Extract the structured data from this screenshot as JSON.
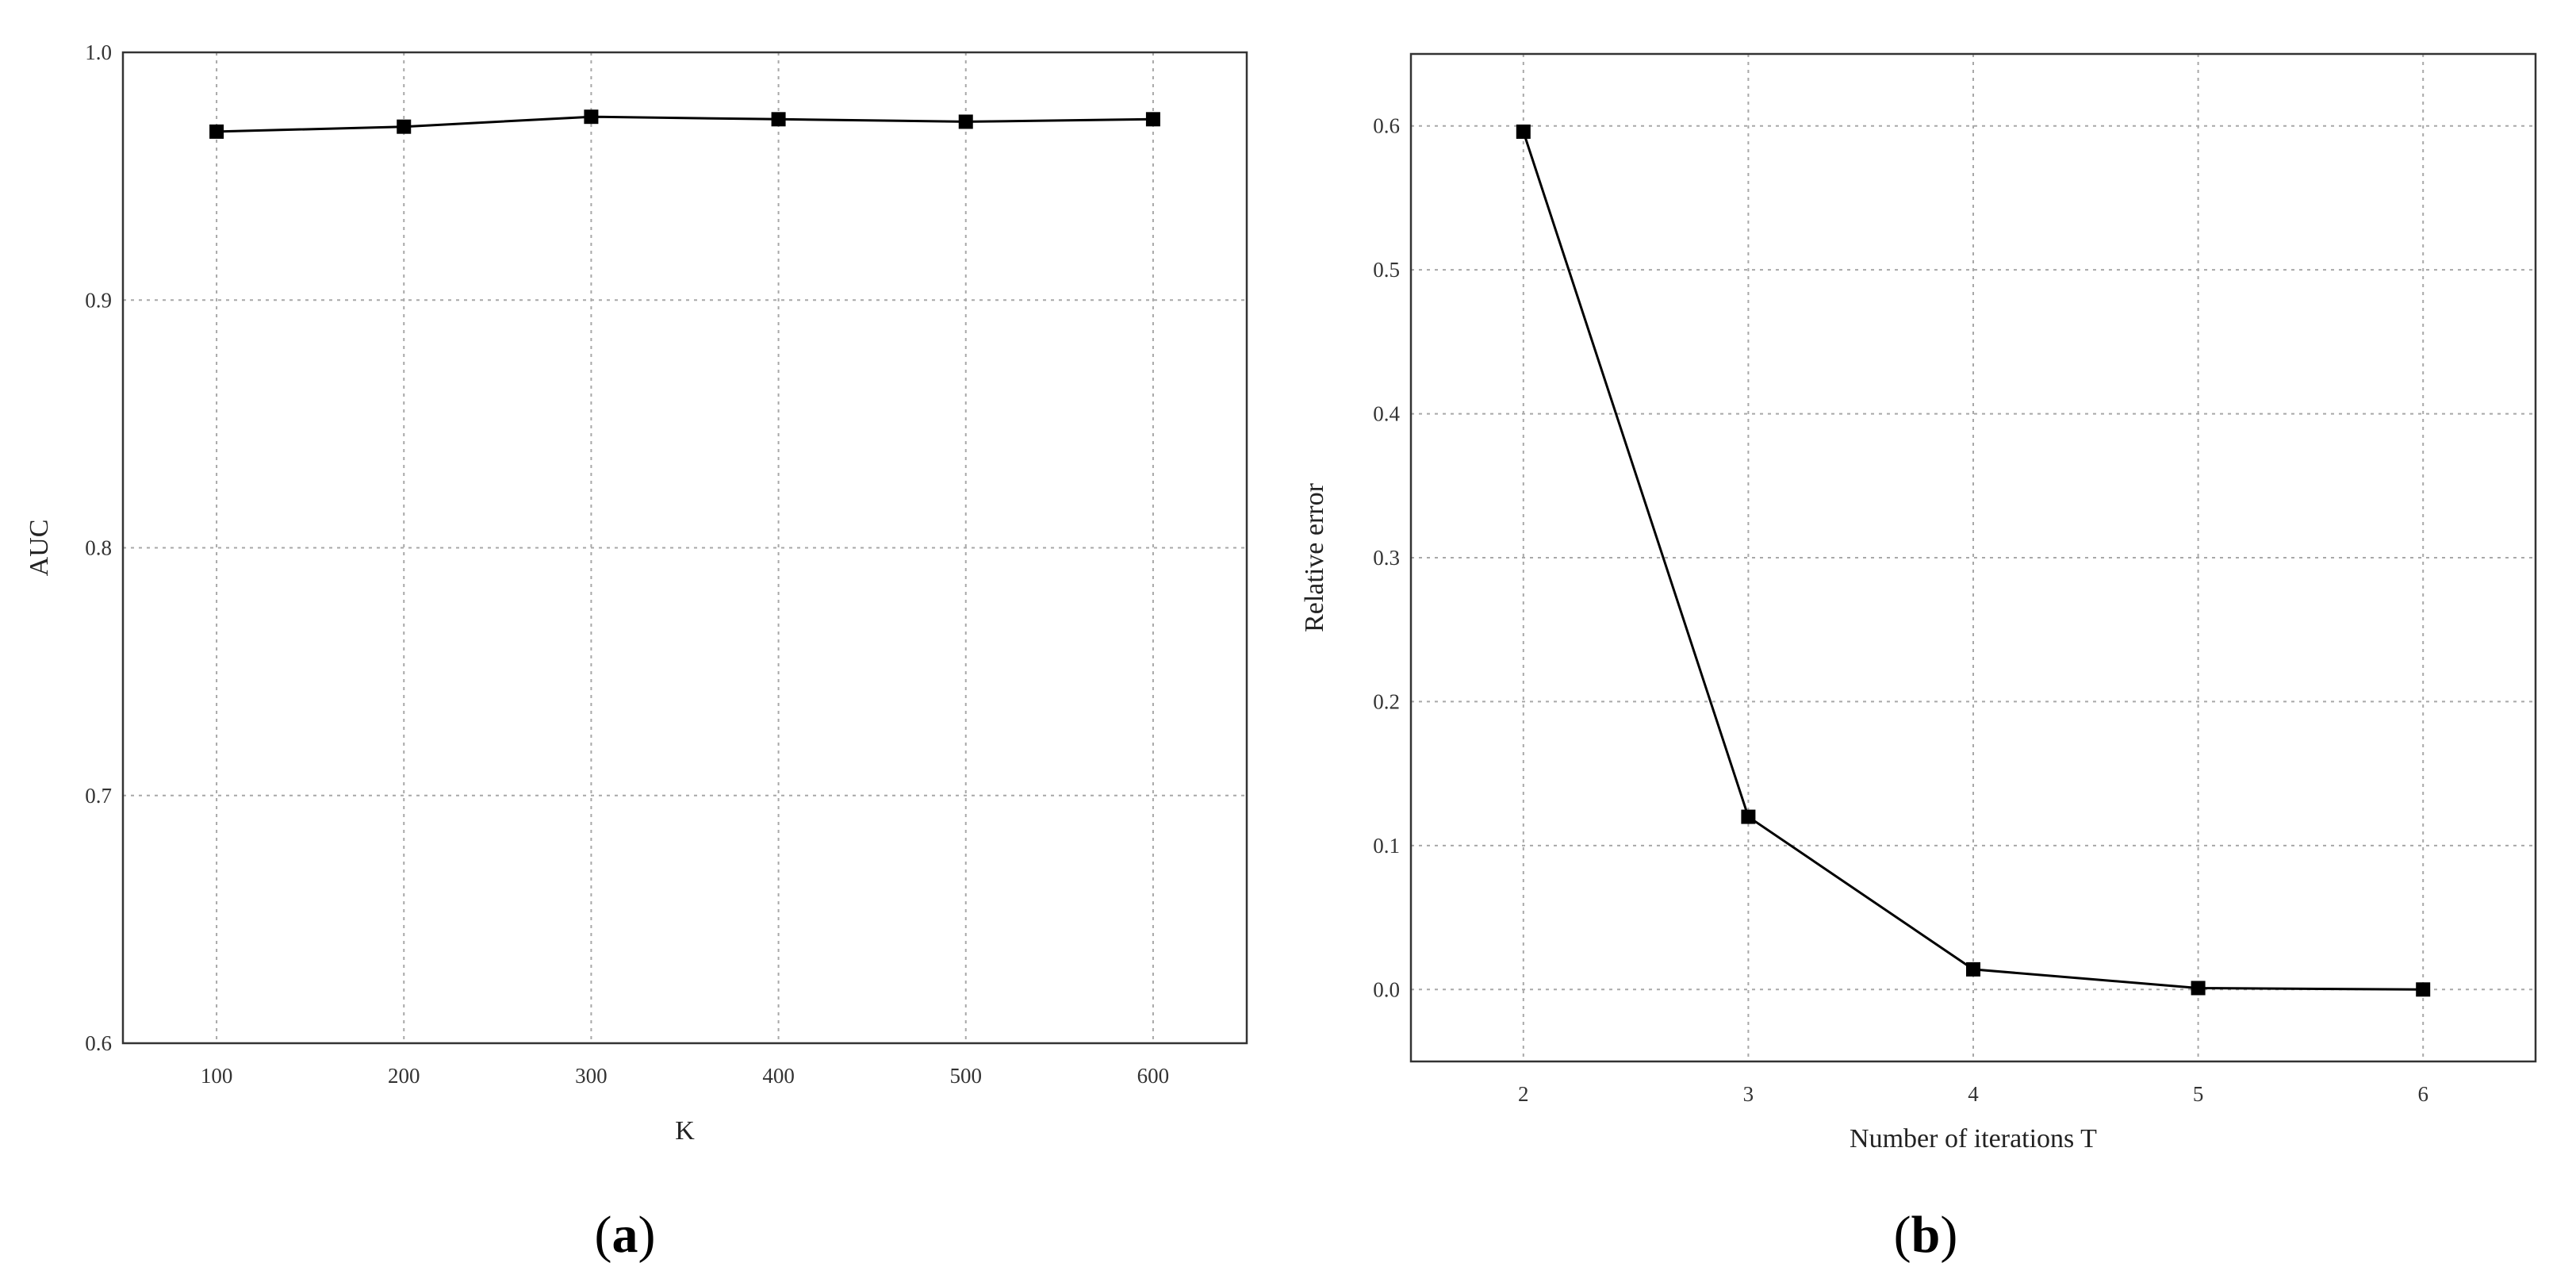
{
  "chart_data": [
    {
      "type": "line",
      "panel_label": "a",
      "xlabel": "K",
      "ylabel": "AUC",
      "xlim": [
        50,
        650
      ],
      "ylim": [
        0.6,
        1.0
      ],
      "xticks": [
        "100",
        "200",
        "300",
        "400",
        "500",
        "600"
      ],
      "yticks": [
        "0.6",
        "0.7",
        "0.8",
        "0.9",
        "1.0"
      ],
      "grid": true,
      "series": [
        {
          "x": [
            100,
            200,
            300,
            400,
            500,
            600
          ],
          "values": [
            0.968,
            0.97,
            0.974,
            0.973,
            0.972,
            0.973
          ]
        }
      ]
    },
    {
      "type": "line",
      "panel_label": "b",
      "xlabel": "Number of iterations T",
      "ylabel": "Relative error",
      "xlim": [
        1.5,
        6.5
      ],
      "ylim": [
        -0.05,
        0.65
      ],
      "xticks": [
        "2",
        "3",
        "4",
        "5",
        "6"
      ],
      "yticks": [
        "0.0",
        "0.1",
        "0.2",
        "0.3",
        "0.4",
        "0.5",
        "0.6"
      ],
      "grid": true,
      "series": [
        {
          "x": [
            2,
            3,
            4,
            5,
            6
          ],
          "values": [
            0.596,
            0.12,
            0.014,
            0.001,
            0.0
          ]
        }
      ]
    }
  ]
}
